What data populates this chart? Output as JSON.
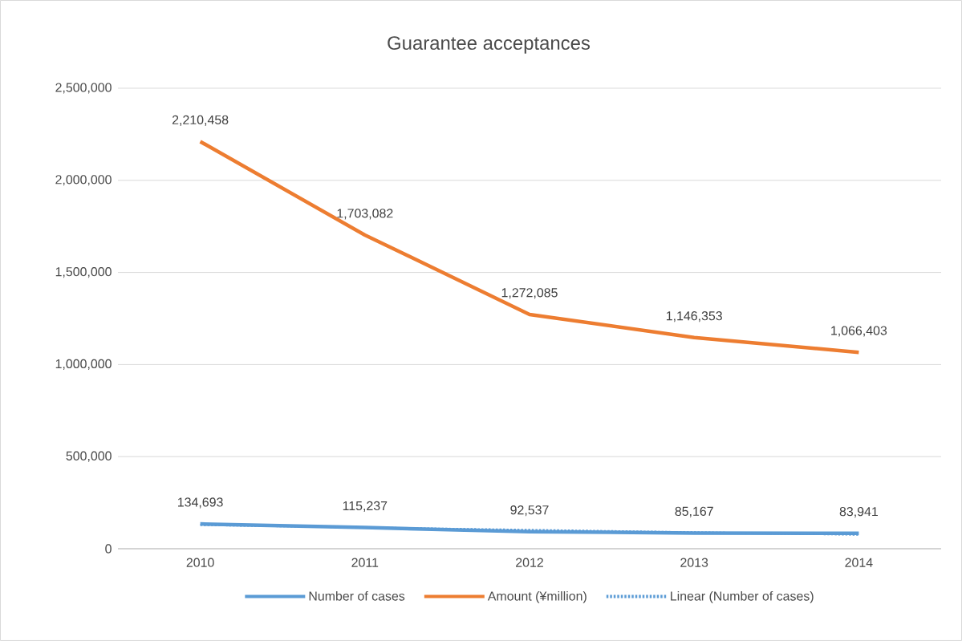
{
  "chart_data": {
    "type": "line",
    "title": "Guarantee acceptances",
    "categories": [
      "2010",
      "2011",
      "2012",
      "2013",
      "2014"
    ],
    "series": [
      {
        "name": "Number of cases",
        "color": "#5b9bd5",
        "values": [
          134693,
          115237,
          92537,
          85167,
          83941
        ],
        "value_labels": [
          "134,693",
          "115,237",
          "92,537",
          "85,167",
          "83,941"
        ]
      },
      {
        "name": "Amount (¥million)",
        "color": "#ed7d31",
        "values": [
          2210458,
          1703082,
          1272085,
          1146353,
          1066403
        ],
        "value_labels": [
          "2,210,458",
          "1,703,082",
          "1,272,085",
          "1,146,353",
          "1,066,403"
        ]
      },
      {
        "name": "Linear (Number of cases)",
        "color": "#5b9bd5",
        "line_style": "dotted",
        "values": [
          129000,
          115000,
          102000,
          89000,
          76000
        ]
      }
    ],
    "ylim": [
      0,
      2500000
    ],
    "yticks": [
      0,
      {
        "value": 500000,
        "label": "500,000"
      },
      {
        "value": 1000000,
        "label": "1,000,000"
      },
      {
        "value": 1500000,
        "label": "1,500,000"
      },
      {
        "value": 2000000,
        "label": "2,000,000"
      },
      {
        "value": 2500000,
        "label": "2,500,000"
      }
    ],
    "grid": "y",
    "legend": "bottom",
    "marker": "none",
    "line_style": "solid"
  }
}
